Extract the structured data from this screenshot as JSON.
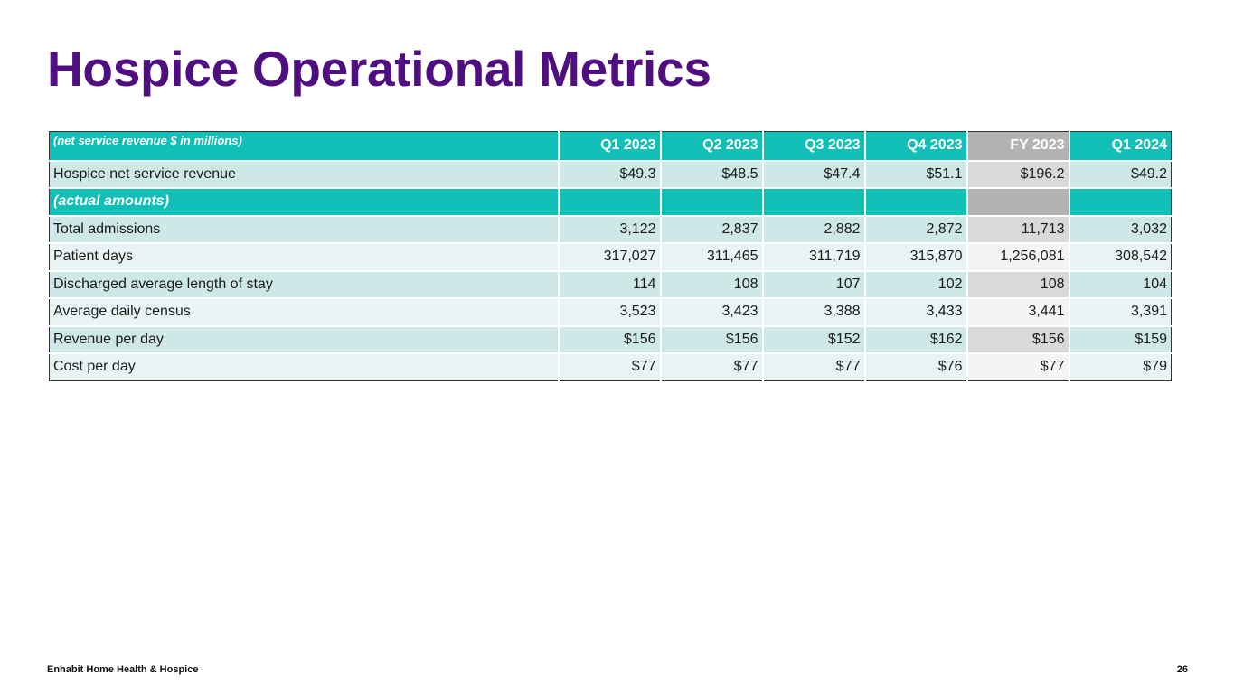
{
  "header": {
    "title": "Hospice Operational Metrics"
  },
  "table": {
    "note": "(net service revenue $ in millions)",
    "columns": [
      "Q1 2023",
      "Q2 2023",
      "Q3 2023",
      "Q4 2023",
      "FY 2023",
      "Q1 2024"
    ],
    "revenue": {
      "label": "Hospice net service revenue",
      "values": [
        "$49.3",
        "$48.5",
        "$47.4",
        "$51.1",
        "$196.2",
        "$49.2"
      ]
    },
    "section": "(actual amounts)",
    "rows": [
      {
        "label": "Total admissions",
        "values": [
          "3,122",
          "2,837",
          "2,882",
          "2,872",
          "11,713",
          "3,032"
        ]
      },
      {
        "label": "Patient days",
        "values": [
          "317,027",
          "311,465",
          "311,719",
          "315,870",
          "1,256,081",
          "308,542"
        ]
      },
      {
        "label": "Discharged average length of stay",
        "values": [
          "114",
          "108",
          "107",
          "102",
          "108",
          "104"
        ]
      },
      {
        "label": "Average daily census",
        "values": [
          "3,523",
          "3,423",
          "3,388",
          "3,433",
          "3,441",
          "3,391"
        ]
      },
      {
        "label": "Revenue per day",
        "values": [
          "$156",
          "$156",
          "$152",
          "$162",
          "$156",
          "$159"
        ]
      },
      {
        "label": "Cost per day",
        "values": [
          "$77",
          "$77",
          "$77",
          "$76",
          "$77",
          "$79"
        ]
      }
    ]
  },
  "footer": {
    "company": "Enhabit Home Health & Hospice",
    "page": "26"
  }
}
